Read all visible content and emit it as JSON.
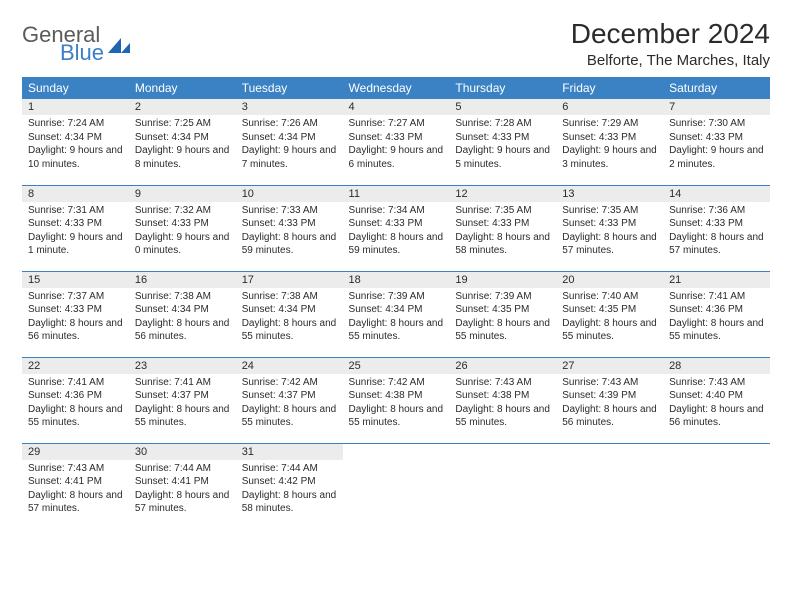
{
  "brand": {
    "word1": "General",
    "word2": "Blue",
    "mark_color": "#1f66b0",
    "word1_color": "#5b5b5b",
    "word2_color": "#3b7fc4"
  },
  "title": "December 2024",
  "location": "Belforte, The Marches, Italy",
  "colors": {
    "header_bg": "#3b82c4",
    "header_text": "#ffffff",
    "daynum_bg": "#ececec",
    "row_divider": "#3b7fc4",
    "text": "#2b2b2b",
    "background": "#ffffff"
  },
  "day_headers": [
    "Sunday",
    "Monday",
    "Tuesday",
    "Wednesday",
    "Thursday",
    "Friday",
    "Saturday"
  ],
  "weeks": [
    [
      {
        "n": "1",
        "sunrise": "Sunrise: 7:24 AM",
        "sunset": "Sunset: 4:34 PM",
        "day": "Daylight: 9 hours and 10 minutes."
      },
      {
        "n": "2",
        "sunrise": "Sunrise: 7:25 AM",
        "sunset": "Sunset: 4:34 PM",
        "day": "Daylight: 9 hours and 8 minutes."
      },
      {
        "n": "3",
        "sunrise": "Sunrise: 7:26 AM",
        "sunset": "Sunset: 4:34 PM",
        "day": "Daylight: 9 hours and 7 minutes."
      },
      {
        "n": "4",
        "sunrise": "Sunrise: 7:27 AM",
        "sunset": "Sunset: 4:33 PM",
        "day": "Daylight: 9 hours and 6 minutes."
      },
      {
        "n": "5",
        "sunrise": "Sunrise: 7:28 AM",
        "sunset": "Sunset: 4:33 PM",
        "day": "Daylight: 9 hours and 5 minutes."
      },
      {
        "n": "6",
        "sunrise": "Sunrise: 7:29 AM",
        "sunset": "Sunset: 4:33 PM",
        "day": "Daylight: 9 hours and 3 minutes."
      },
      {
        "n": "7",
        "sunrise": "Sunrise: 7:30 AM",
        "sunset": "Sunset: 4:33 PM",
        "day": "Daylight: 9 hours and 2 minutes."
      }
    ],
    [
      {
        "n": "8",
        "sunrise": "Sunrise: 7:31 AM",
        "sunset": "Sunset: 4:33 PM",
        "day": "Daylight: 9 hours and 1 minute."
      },
      {
        "n": "9",
        "sunrise": "Sunrise: 7:32 AM",
        "sunset": "Sunset: 4:33 PM",
        "day": "Daylight: 9 hours and 0 minutes."
      },
      {
        "n": "10",
        "sunrise": "Sunrise: 7:33 AM",
        "sunset": "Sunset: 4:33 PM",
        "day": "Daylight: 8 hours and 59 minutes."
      },
      {
        "n": "11",
        "sunrise": "Sunrise: 7:34 AM",
        "sunset": "Sunset: 4:33 PM",
        "day": "Daylight: 8 hours and 59 minutes."
      },
      {
        "n": "12",
        "sunrise": "Sunrise: 7:35 AM",
        "sunset": "Sunset: 4:33 PM",
        "day": "Daylight: 8 hours and 58 minutes."
      },
      {
        "n": "13",
        "sunrise": "Sunrise: 7:35 AM",
        "sunset": "Sunset: 4:33 PM",
        "day": "Daylight: 8 hours and 57 minutes."
      },
      {
        "n": "14",
        "sunrise": "Sunrise: 7:36 AM",
        "sunset": "Sunset: 4:33 PM",
        "day": "Daylight: 8 hours and 57 minutes."
      }
    ],
    [
      {
        "n": "15",
        "sunrise": "Sunrise: 7:37 AM",
        "sunset": "Sunset: 4:33 PM",
        "day": "Daylight: 8 hours and 56 minutes."
      },
      {
        "n": "16",
        "sunrise": "Sunrise: 7:38 AM",
        "sunset": "Sunset: 4:34 PM",
        "day": "Daylight: 8 hours and 56 minutes."
      },
      {
        "n": "17",
        "sunrise": "Sunrise: 7:38 AM",
        "sunset": "Sunset: 4:34 PM",
        "day": "Daylight: 8 hours and 55 minutes."
      },
      {
        "n": "18",
        "sunrise": "Sunrise: 7:39 AM",
        "sunset": "Sunset: 4:34 PM",
        "day": "Daylight: 8 hours and 55 minutes."
      },
      {
        "n": "19",
        "sunrise": "Sunrise: 7:39 AM",
        "sunset": "Sunset: 4:35 PM",
        "day": "Daylight: 8 hours and 55 minutes."
      },
      {
        "n": "20",
        "sunrise": "Sunrise: 7:40 AM",
        "sunset": "Sunset: 4:35 PM",
        "day": "Daylight: 8 hours and 55 minutes."
      },
      {
        "n": "21",
        "sunrise": "Sunrise: 7:41 AM",
        "sunset": "Sunset: 4:36 PM",
        "day": "Daylight: 8 hours and 55 minutes."
      }
    ],
    [
      {
        "n": "22",
        "sunrise": "Sunrise: 7:41 AM",
        "sunset": "Sunset: 4:36 PM",
        "day": "Daylight: 8 hours and 55 minutes."
      },
      {
        "n": "23",
        "sunrise": "Sunrise: 7:41 AM",
        "sunset": "Sunset: 4:37 PM",
        "day": "Daylight: 8 hours and 55 minutes."
      },
      {
        "n": "24",
        "sunrise": "Sunrise: 7:42 AM",
        "sunset": "Sunset: 4:37 PM",
        "day": "Daylight: 8 hours and 55 minutes."
      },
      {
        "n": "25",
        "sunrise": "Sunrise: 7:42 AM",
        "sunset": "Sunset: 4:38 PM",
        "day": "Daylight: 8 hours and 55 minutes."
      },
      {
        "n": "26",
        "sunrise": "Sunrise: 7:43 AM",
        "sunset": "Sunset: 4:38 PM",
        "day": "Daylight: 8 hours and 55 minutes."
      },
      {
        "n": "27",
        "sunrise": "Sunrise: 7:43 AM",
        "sunset": "Sunset: 4:39 PM",
        "day": "Daylight: 8 hours and 56 minutes."
      },
      {
        "n": "28",
        "sunrise": "Sunrise: 7:43 AM",
        "sunset": "Sunset: 4:40 PM",
        "day": "Daylight: 8 hours and 56 minutes."
      }
    ],
    [
      {
        "n": "29",
        "sunrise": "Sunrise: 7:43 AM",
        "sunset": "Sunset: 4:41 PM",
        "day": "Daylight: 8 hours and 57 minutes."
      },
      {
        "n": "30",
        "sunrise": "Sunrise: 7:44 AM",
        "sunset": "Sunset: 4:41 PM",
        "day": "Daylight: 8 hours and 57 minutes."
      },
      {
        "n": "31",
        "sunrise": "Sunrise: 7:44 AM",
        "sunset": "Sunset: 4:42 PM",
        "day": "Daylight: 8 hours and 58 minutes."
      },
      null,
      null,
      null,
      null
    ]
  ]
}
